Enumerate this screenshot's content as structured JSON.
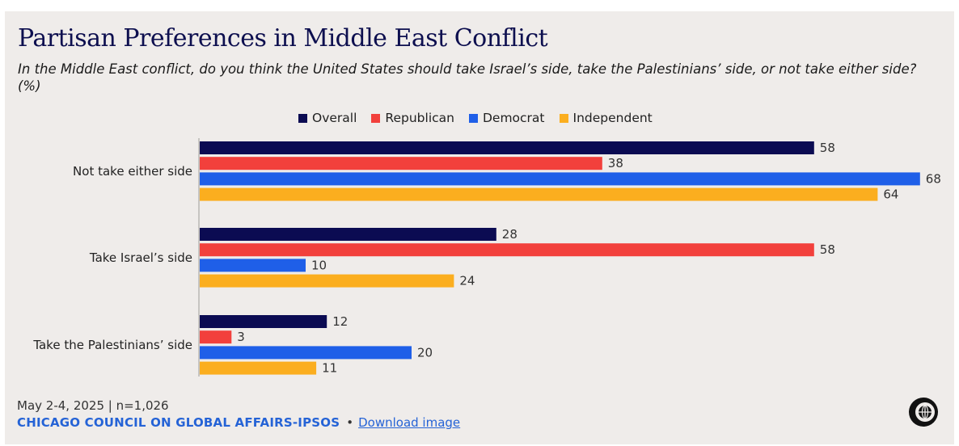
{
  "title": "Partisan Preferences in Middle East Conflict",
  "subtitle": "In the Middle East conflict, do you think the United States should take Israel’s side, take the Palestinians’ side, or not take either side? (%)",
  "footer": {
    "date_sample": "May 2-4, 2025 | n=1,026",
    "source": "CHICAGO COUNCIL ON GLOBAL AFFAIRS-IPSOS",
    "bullet": "•",
    "download_label": "Download image"
  },
  "chart_data": {
    "type": "bar",
    "orientation": "horizontal",
    "title": "Partisan Preferences in Middle East Conflict",
    "categories": [
      "Not take either side",
      "Take Israel’s side",
      "Take the Palestinians’ side"
    ],
    "series": [
      {
        "name": "Overall",
        "color": "#0b0b52",
        "values": [
          58,
          28,
          12
        ]
      },
      {
        "name": "Republican",
        "color": "#f2403c",
        "values": [
          38,
          58,
          3
        ]
      },
      {
        "name": "Democrat",
        "color": "#1f5fe8",
        "values": [
          68,
          10,
          20
        ]
      },
      {
        "name": "Independent",
        "color": "#fbae1f",
        "values": [
          64,
          24,
          11
        ]
      }
    ],
    "xlim": [
      0,
      68
    ],
    "grid": false,
    "legend": "top-center",
    "data_labels": true
  }
}
